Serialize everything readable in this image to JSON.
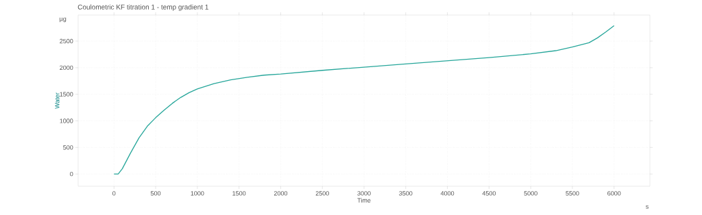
{
  "chart_data": {
    "type": "line",
    "title": "Coulometric KF titration 1 - temp gradient 1",
    "xlabel": "Time",
    "ylabel": "Water",
    "annotations": [
      "µg",
      "s"
    ],
    "x": [
      0,
      50,
      100,
      200,
      300,
      400,
      500,
      600,
      700,
      800,
      900,
      1000,
      1200,
      1400,
      1600,
      1800,
      2000,
      2500,
      3000,
      3500,
      4000,
      4500,
      5000,
      5300,
      5500,
      5700,
      5800,
      5900,
      6000
    ],
    "series": [
      {
        "color": "#26a69a",
        "values": [
          0,
          0,
          100,
          400,
          680,
          900,
          1060,
          1200,
          1330,
          1440,
          1530,
          1600,
          1700,
          1770,
          1820,
          1860,
          1880,
          1950,
          2010,
          2070,
          2130,
          2190,
          2260,
          2320,
          2390,
          2470,
          2560,
          2670,
          2790
        ]
      }
    ],
    "xlim": [
      -430,
      6430
    ],
    "ylim": [
      -230,
      2990
    ],
    "xticks": [
      0,
      500,
      1000,
      1500,
      2000,
      2500,
      3000,
      3500,
      4000,
      4500,
      5000,
      5500,
      6000
    ],
    "yticks": [
      0,
      500,
      1000,
      1500,
      2000,
      2500
    ],
    "grid": true,
    "line_style": "solid",
    "marker": "none"
  }
}
